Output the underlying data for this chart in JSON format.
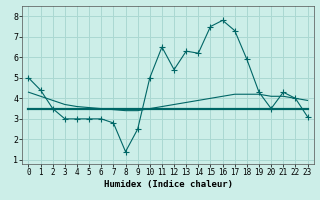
{
  "xlabel": "Humidex (Indice chaleur)",
  "bg_color": "#cceee8",
  "grid_color": "#aad8d2",
  "line_color": "#006666",
  "xlim": [
    -0.5,
    23.5
  ],
  "ylim": [
    0.8,
    8.5
  ],
  "yticks": [
    1,
    2,
    3,
    4,
    5,
    6,
    7,
    8
  ],
  "xticks": [
    0,
    1,
    2,
    3,
    4,
    5,
    6,
    7,
    8,
    9,
    10,
    11,
    12,
    13,
    14,
    15,
    16,
    17,
    18,
    19,
    20,
    21,
    22,
    23
  ],
  "line1_x": [
    0,
    1,
    2,
    3,
    4,
    5,
    6,
    7,
    8,
    9,
    10,
    11,
    12,
    13,
    14,
    15,
    16,
    17,
    18,
    19,
    20,
    21,
    22,
    23
  ],
  "line1_y": [
    5.0,
    4.4,
    3.5,
    3.0,
    3.0,
    3.0,
    3.0,
    2.8,
    1.4,
    2.5,
    5.0,
    6.5,
    5.4,
    6.3,
    6.2,
    7.5,
    7.8,
    7.3,
    5.9,
    4.3,
    3.5,
    4.3,
    4.0,
    3.1
  ],
  "line2_x": [
    0,
    1,
    2,
    3,
    4,
    5,
    6,
    7,
    8,
    9,
    10,
    11,
    12,
    13,
    14,
    15,
    16,
    17,
    18,
    19,
    20,
    21,
    22,
    23
  ],
  "line2_y": [
    3.5,
    3.5,
    3.5,
    3.5,
    3.5,
    3.5,
    3.5,
    3.5,
    3.5,
    3.5,
    3.5,
    3.5,
    3.5,
    3.5,
    3.5,
    3.5,
    3.5,
    3.5,
    3.5,
    3.5,
    3.5,
    3.5,
    3.5,
    3.5
  ],
  "line3_x": [
    0,
    1,
    2,
    3,
    4,
    5,
    6,
    7,
    8,
    9,
    10,
    11,
    12,
    13,
    14,
    15,
    16,
    17,
    18,
    19,
    20,
    21,
    22,
    23
  ],
  "line3_y": [
    4.3,
    4.1,
    3.9,
    3.7,
    3.6,
    3.55,
    3.5,
    3.45,
    3.4,
    3.4,
    3.5,
    3.6,
    3.7,
    3.8,
    3.9,
    4.0,
    4.1,
    4.2,
    4.2,
    4.2,
    4.1,
    4.1,
    4.0,
    3.9
  ],
  "xlabel_fontsize": 6.5,
  "tick_fontsize": 5.5
}
